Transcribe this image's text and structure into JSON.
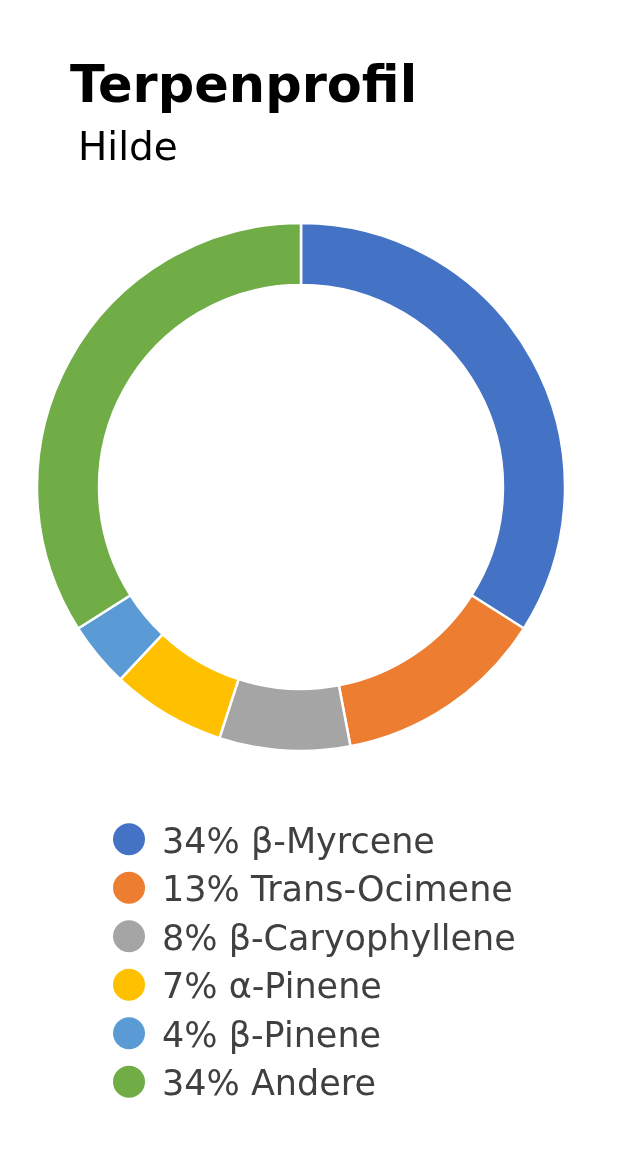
{
  "chart_data": {
    "type": "donut",
    "title": "Terpenprofil",
    "subtitle": "Hilde",
    "categories": [
      "β-Myrcene",
      "Trans-Ocimene",
      "β-Caryophyllene",
      "α-Pinene",
      "β-Pinene",
      "Andere"
    ],
    "values": [
      34,
      13,
      8,
      7,
      4,
      34
    ],
    "value_labels": [
      "34%",
      "13%",
      "8%",
      "7%",
      "4%",
      "34%"
    ],
    "colors": [
      "#4472c4",
      "#ed7d31",
      "#a5a5a5",
      "#ffc000",
      "#5b9bd5",
      "#70ad47"
    ],
    "legend": "bottom"
  }
}
